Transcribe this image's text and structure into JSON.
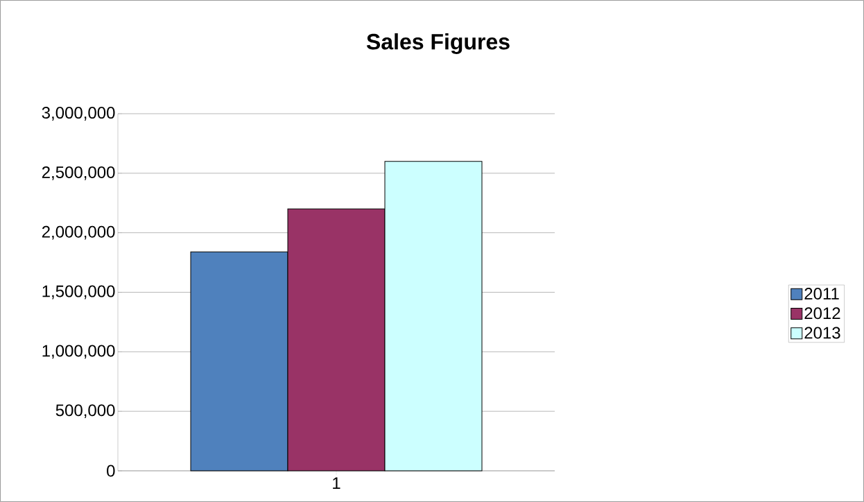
{
  "chart_data": {
    "type": "bar",
    "title": "Sales Figures",
    "categories": [
      "1"
    ],
    "series": [
      {
        "name": "2011",
        "color": "#4f81bd",
        "values": [
          1840000
        ]
      },
      {
        "name": "2012",
        "color": "#993366",
        "values": [
          2200000
        ]
      },
      {
        "name": "2013",
        "color": "#ccffff",
        "values": [
          2600000
        ]
      }
    ],
    "ylim": [
      0,
      3000000
    ],
    "yticks": [
      {
        "value": 0,
        "label": "0"
      },
      {
        "value": 500000,
        "label": "500,000"
      },
      {
        "value": 1000000,
        "label": "1,000,000"
      },
      {
        "value": 1500000,
        "label": "1,500,000"
      },
      {
        "value": 2000000,
        "label": "2,000,000"
      },
      {
        "value": 2500000,
        "label": "2,500,000"
      },
      {
        "value": 3000000,
        "label": "3,000,000"
      }
    ],
    "grid": "y",
    "legend": "right"
  }
}
